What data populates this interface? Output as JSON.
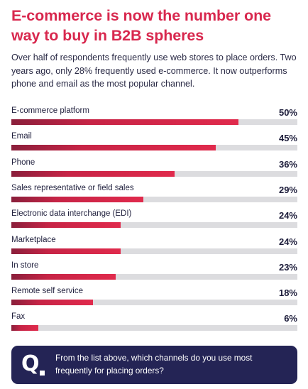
{
  "header": {
    "title": "E-commerce is now the number one way to buy in B2B spheres",
    "intro": "Over half of respondents frequently use web stores to place orders. Two years ago, only 28% frequently used e-commerce. It now outperforms phone and email as the most popular channel."
  },
  "colors": {
    "accent": "#d8284e",
    "bar_start": "#8a1f3b",
    "bar_end": "#e02a4c",
    "track": "#dcdcdf",
    "question_bg": "#242455"
  },
  "chart_data": {
    "type": "bar",
    "orientation": "horizontal",
    "title": "E-commerce is now the number one way to buy in B2B spheres",
    "categories": [
      "E-commerce platform",
      "Email",
      "Phone",
      "Sales representative or field sales",
      "Electronic data interchange (EDI)",
      "Marketplace",
      "In store",
      "Remote self service",
      "Fax"
    ],
    "values": [
      50,
      45,
      36,
      29,
      24,
      24,
      23,
      18,
      6
    ],
    "value_labels": [
      "50%",
      "45%",
      "36%",
      "29%",
      "24%",
      "24%",
      "23%",
      "18%",
      "6%"
    ],
    "xlim": [
      0,
      63
    ],
    "unit": "%",
    "grid": false,
    "legend": "none"
  },
  "question": {
    "mark": "Q",
    "text": "From the list above, which channels do you use most frequently for placing orders?"
  }
}
